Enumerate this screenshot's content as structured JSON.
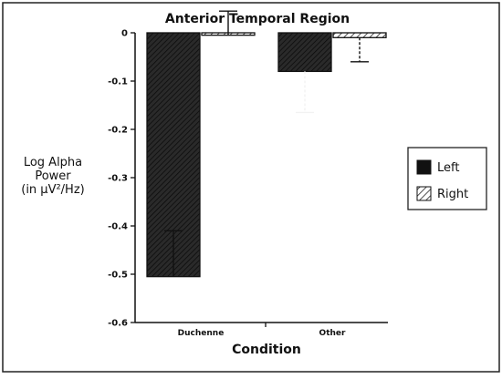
{
  "chart_data": {
    "type": "bar",
    "title": "Anterior Temporal Region",
    "ylabel_lines": [
      "Log Alpha",
      "Power",
      "(in µV²/Hz)"
    ],
    "xlabel": "Condition",
    "categories": [
      "Duchenne",
      "Other"
    ],
    "series": [
      {
        "name": "Left",
        "fill": "dark",
        "values": [
          -0.505,
          -0.08
        ],
        "error": [
          0.095,
          0.085
        ]
      },
      {
        "name": "Right",
        "fill": "light",
        "values": [
          -0.005,
          -0.01
        ],
        "error": [
          0.05,
          0.05
        ]
      }
    ],
    "error_direction": [
      "up",
      "down"
    ],
    "ylim": [
      -0.6,
      0
    ],
    "yticks": [
      0,
      -0.1,
      -0.2,
      -0.3,
      -0.4,
      -0.5,
      -0.6
    ],
    "ytick_labels": [
      "0",
      "-0.1",
      "-0.2",
      "-0.3",
      "-0.4",
      "-0.5",
      "-0.6"
    ],
    "legend_placement": "right",
    "grid": false
  }
}
